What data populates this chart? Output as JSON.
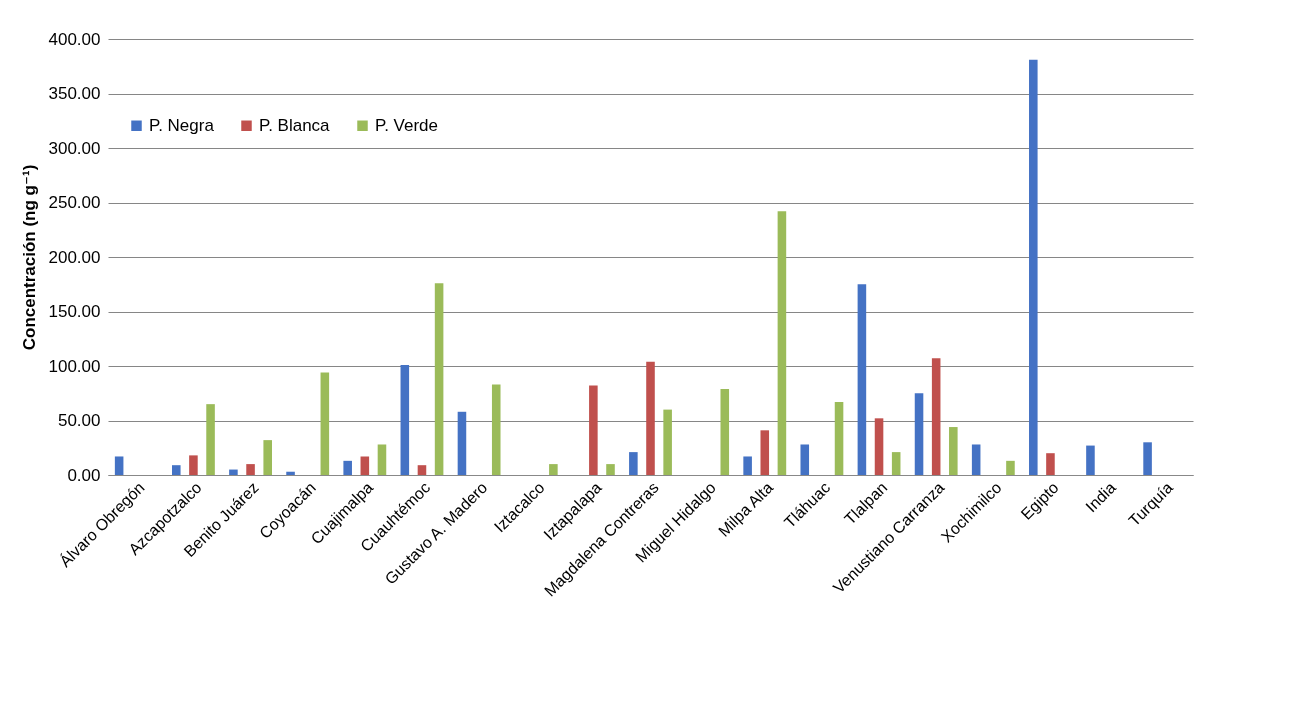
{
  "chart_data": {
    "type": "bar",
    "ylabel": "Concentración (ng g⁻¹)",
    "categories": [
      "Álvaro Obregón",
      "Azcapotzalco",
      "Benito Juárez",
      "Coyoacán",
      "Cuajimalpa",
      "Cuauhtémoc",
      "Gustavo A. Madero",
      "Iztacalco",
      "Iztapalapa",
      "Magdalena Contreras",
      "Miguel Hidalgo",
      "Milpa Alta",
      "Tláhuac",
      "Tlalpan",
      "Venustiano Carranza",
      "Xochimilco",
      "Egipto",
      "India",
      "Turquía"
    ],
    "series": [
      {
        "name": "P. Negra",
        "color": "#4472c4",
        "values": [
          17,
          9,
          5,
          3,
          13,
          101,
          58,
          null,
          null,
          21,
          null,
          17,
          28,
          175,
          75,
          28,
          381,
          27,
          30
        ]
      },
      {
        "name": "P. Blanca",
        "color": "#c0504d",
        "values": [
          null,
          18,
          10,
          null,
          17,
          9,
          null,
          null,
          82,
          104,
          null,
          41,
          null,
          52,
          107,
          null,
          20,
          null,
          null
        ]
      },
      {
        "name": "P. Verde",
        "color": "#9bbb59",
        "values": [
          null,
          65,
          32,
          94,
          28,
          176,
          83,
          10,
          10,
          60,
          79,
          242,
          67,
          21,
          44,
          13,
          null,
          null,
          null
        ]
      }
    ],
    "ylim": [
      0,
      400
    ],
    "yticks": [
      {
        "value": 0,
        "label": "0.00"
      },
      {
        "value": 50,
        "label": "50.00"
      },
      {
        "value": 100,
        "label": "100.00"
      },
      {
        "value": 150,
        "label": "150.00"
      },
      {
        "value": 200,
        "label": "200.00"
      },
      {
        "value": 250,
        "label": "250.00"
      },
      {
        "value": 300,
        "label": "300.00"
      },
      {
        "value": 350,
        "label": "350.00"
      },
      {
        "value": 400,
        "label": "400.00"
      }
    ],
    "grid": "y",
    "legend": "top left"
  }
}
